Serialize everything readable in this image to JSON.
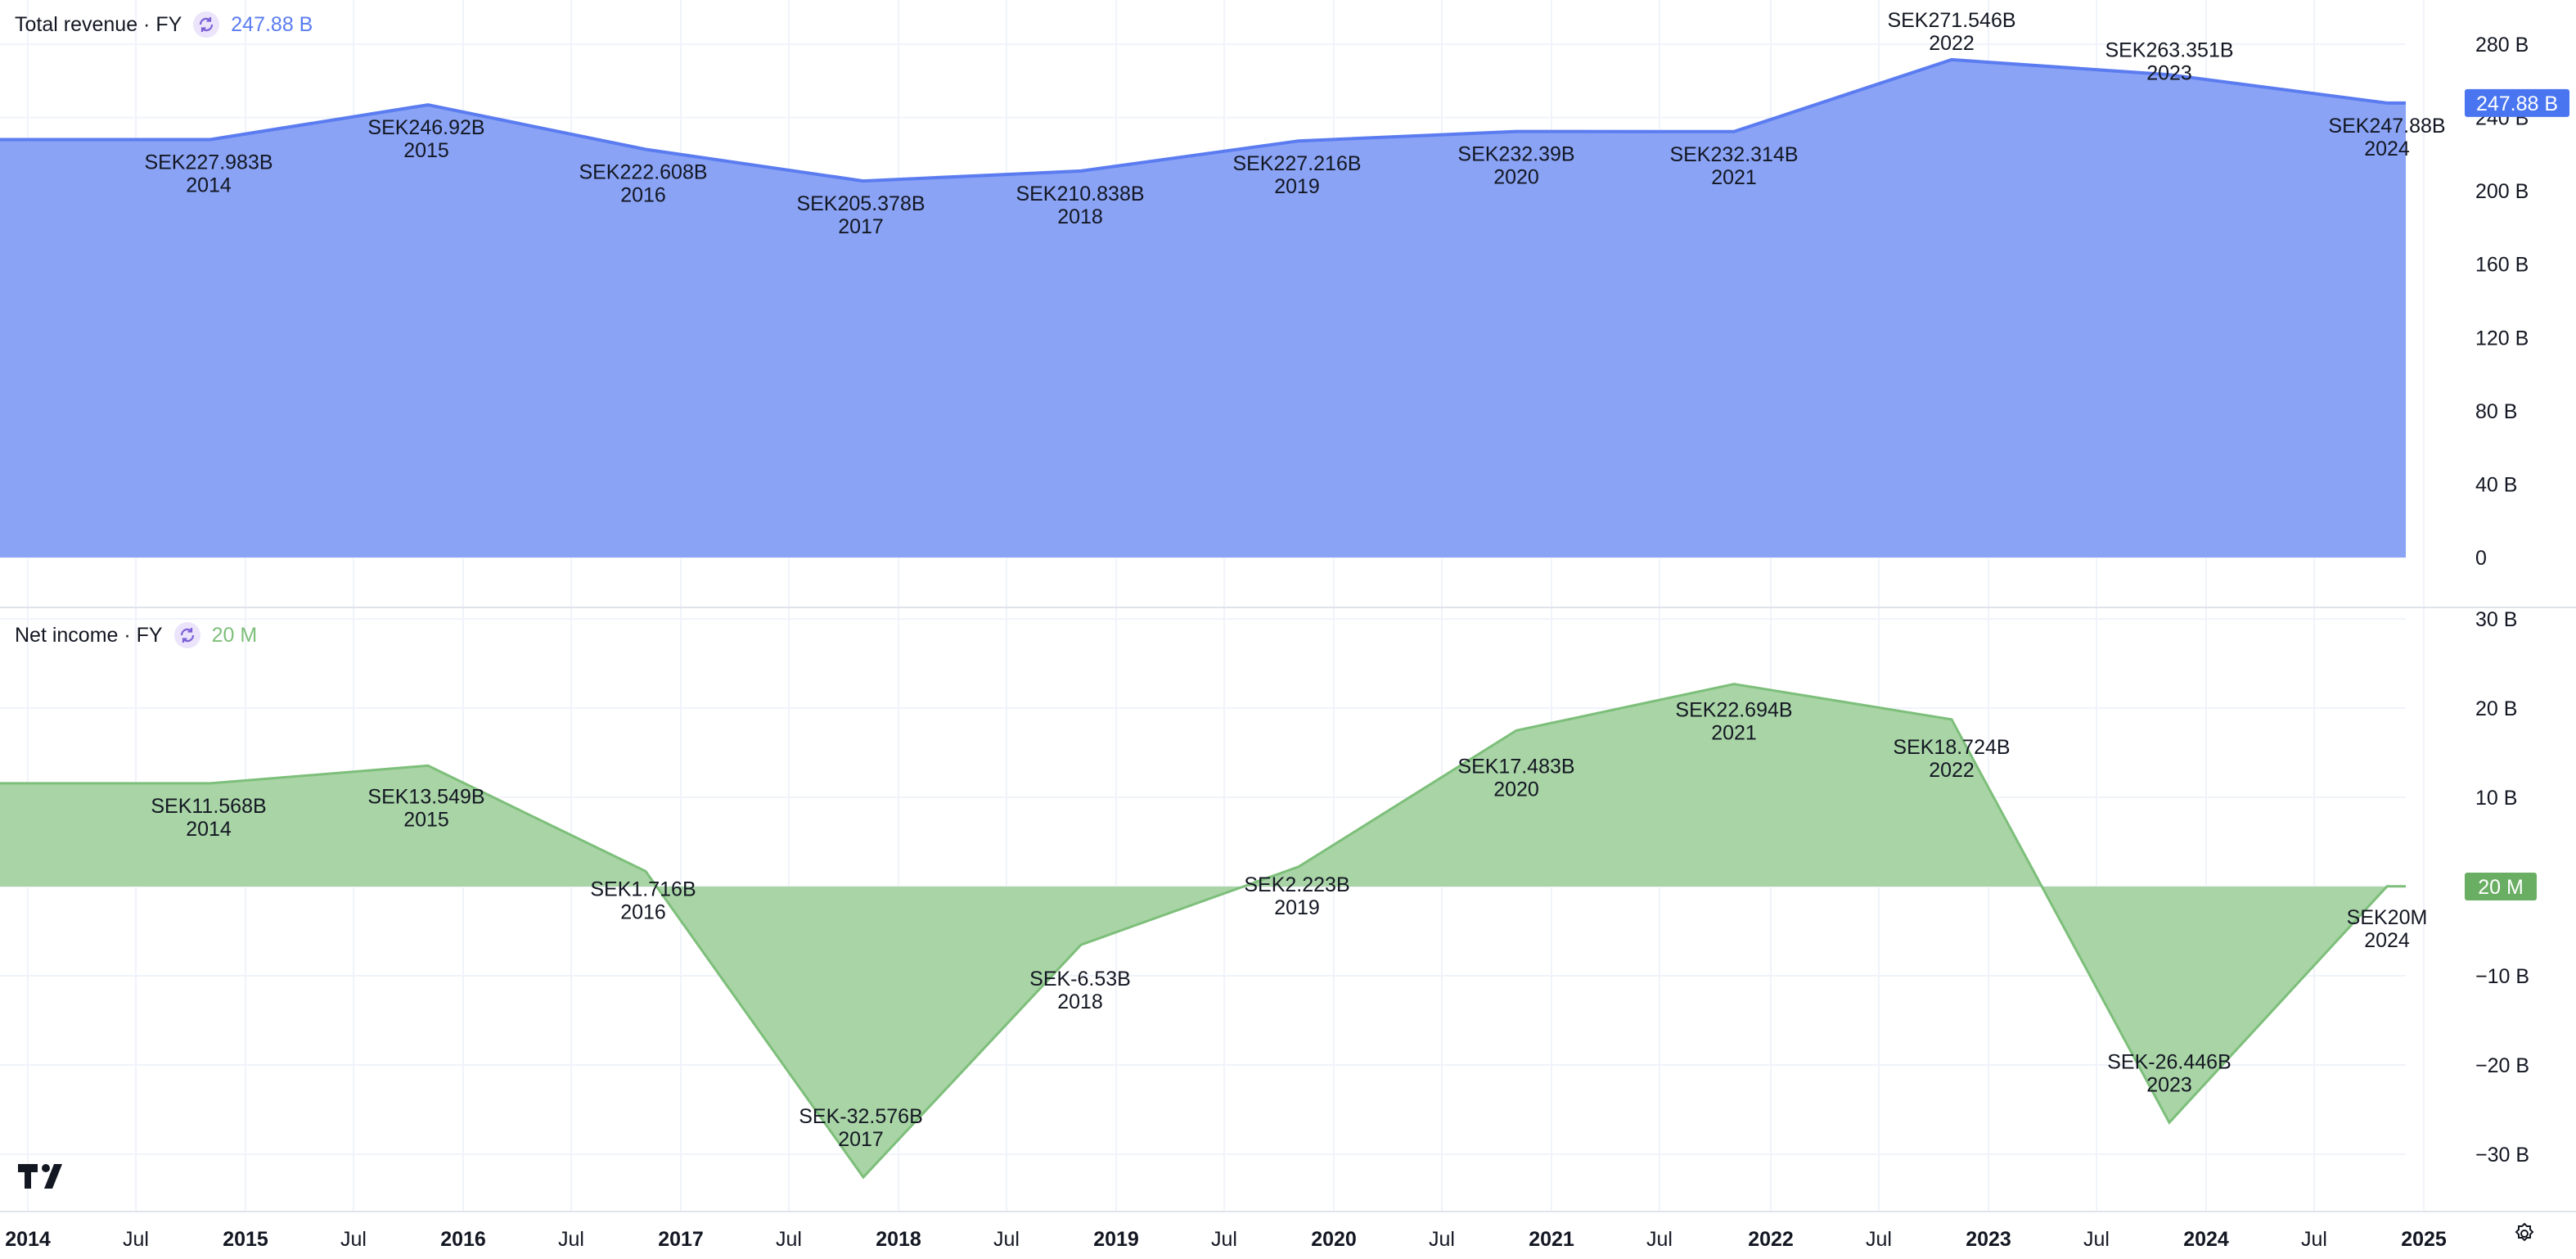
{
  "charts": {
    "revenue": {
      "legend_title": "Total revenue · FY",
      "legend_value": "247.88 B",
      "badge": "247.88 B",
      "color": "#5b7cf0",
      "fill": "#8aa3f5",
      "y_ticks": [
        "0",
        "40 B",
        "80 B",
        "120 B",
        "160 B",
        "200 B",
        "240 B",
        "280 B"
      ]
    },
    "net_income": {
      "legend_title": "Net income · FY",
      "legend_value": "20 M",
      "badge": "20 M",
      "color": "#7dbf7a",
      "fill": "#a9d4a6",
      "y_ticks": [
        "30 B",
        "20 B",
        "10 B",
        "−10 B",
        "−20 B",
        "−30 B"
      ]
    }
  },
  "x_axis": [
    "2014",
    "Jul",
    "2015",
    "Jul",
    "2016",
    "Jul",
    "2017",
    "Jul",
    "2018",
    "Jul",
    "2019",
    "Jul",
    "2020",
    "Jul",
    "2021",
    "Jul",
    "2022",
    "Jul",
    "2023",
    "Jul",
    "2024",
    "Jul",
    "2025"
  ],
  "chart_data": [
    {
      "type": "area",
      "title": "Total revenue · FY",
      "unit": "SEK",
      "x": [
        "2014",
        "2015",
        "2016",
        "2017",
        "2018",
        "2019",
        "2020",
        "2021",
        "2022",
        "2023",
        "2024"
      ],
      "values": [
        227.983,
        246.92,
        222.608,
        205.378,
        210.838,
        227.216,
        232.39,
        232.314,
        271.546,
        263.351,
        247.88
      ],
      "labels": [
        "SEK227.983B",
        "SEK246.92B",
        "SEK222.608B",
        "SEK205.378B",
        "SEK210.838B",
        "SEK227.216B",
        "SEK232.39B",
        "SEK232.314B",
        "SEK271.546B",
        "SEK263.351B",
        "SEK247.88B"
      ],
      "ylim": [
        0,
        280
      ]
    },
    {
      "type": "area",
      "title": "Net income · FY",
      "unit": "SEK",
      "x": [
        "2014",
        "2015",
        "2016",
        "2017",
        "2018",
        "2019",
        "2020",
        "2021",
        "2022",
        "2023",
        "2024"
      ],
      "values": [
        11.568,
        13.549,
        1.716,
        -32.576,
        -6.53,
        2.223,
        17.483,
        22.694,
        18.724,
        -26.446,
        0.02
      ],
      "labels": [
        "SEK11.568B",
        "SEK13.549B",
        "SEK1.716B",
        "SEK-32.576B",
        "SEK-6.53B",
        "SEK2.223B",
        "SEK17.483B",
        "SEK22.694B",
        "SEK18.724B",
        "SEK-26.446B",
        "SEK20M"
      ],
      "ylim": [
        -30,
        30
      ]
    }
  ]
}
